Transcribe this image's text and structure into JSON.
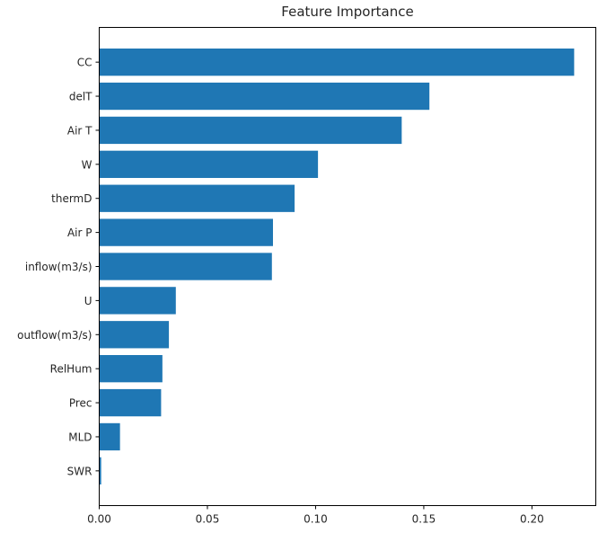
{
  "chart_data": {
    "type": "bar",
    "orientation": "horizontal",
    "title": "Feature Importance",
    "xlabel": "",
    "ylabel": "",
    "categories": [
      "CC",
      "delT",
      "Air T",
      "W",
      "thermD",
      "Air P",
      "inflow(m3/s)",
      "U",
      "outflow(m3/s)",
      "RelHum",
      "Prec",
      "MLD",
      "SWR"
    ],
    "values": [
      0.2195,
      0.1526,
      0.1398,
      0.1011,
      0.0903,
      0.0803,
      0.0798,
      0.0354,
      0.0322,
      0.0292,
      0.0286,
      0.0096,
      0.0009
    ],
    "xlim": [
      0,
      0.2295
    ],
    "xticks": [
      0.0,
      0.05,
      0.1,
      0.15,
      0.2
    ],
    "xtick_labels": [
      "0.00",
      "0.05",
      "0.10",
      "0.15",
      "0.20"
    ],
    "bar_color": "#1f77b4",
    "grid": false,
    "legend": false
  }
}
